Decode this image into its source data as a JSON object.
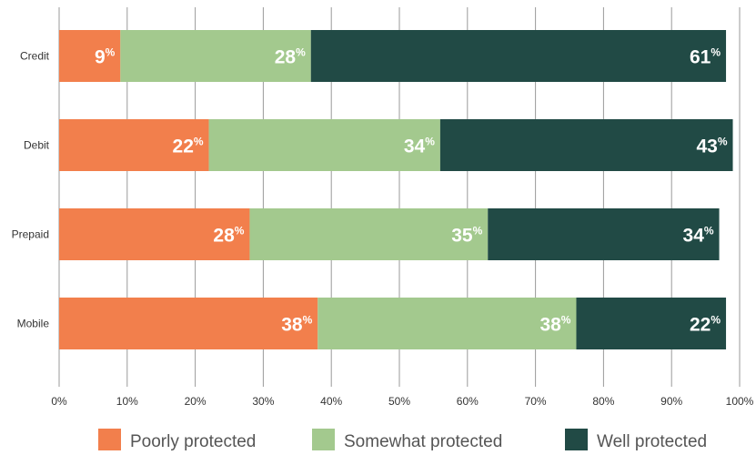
{
  "chart_data": {
    "type": "bar",
    "orientation": "horizontal",
    "stacked": true,
    "categories": [
      "Credit",
      "Debit",
      "Prepaid",
      "Mobile"
    ],
    "series": [
      {
        "name": "Poorly protected",
        "values": [
          9,
          22,
          28,
          38
        ],
        "color": "#F27F4C"
      },
      {
        "name": "Somewhat protected",
        "values": [
          28,
          34,
          35,
          38
        ],
        "color": "#A3C98E"
      },
      {
        "name": "Well protected",
        "values": [
          61,
          43,
          34,
          22
        ],
        "color": "#214A45"
      }
    ],
    "x_ticks": [
      "0%",
      "10%",
      "20%",
      "30%",
      "40%",
      "50%",
      "60%",
      "70%",
      "80%",
      "90%",
      "100%"
    ],
    "xlim": [
      0,
      100
    ],
    "percent_symbol": "%",
    "grid": "vertical",
    "legend_position": "bottom",
    "title": "",
    "xlabel": "",
    "ylabel": ""
  }
}
